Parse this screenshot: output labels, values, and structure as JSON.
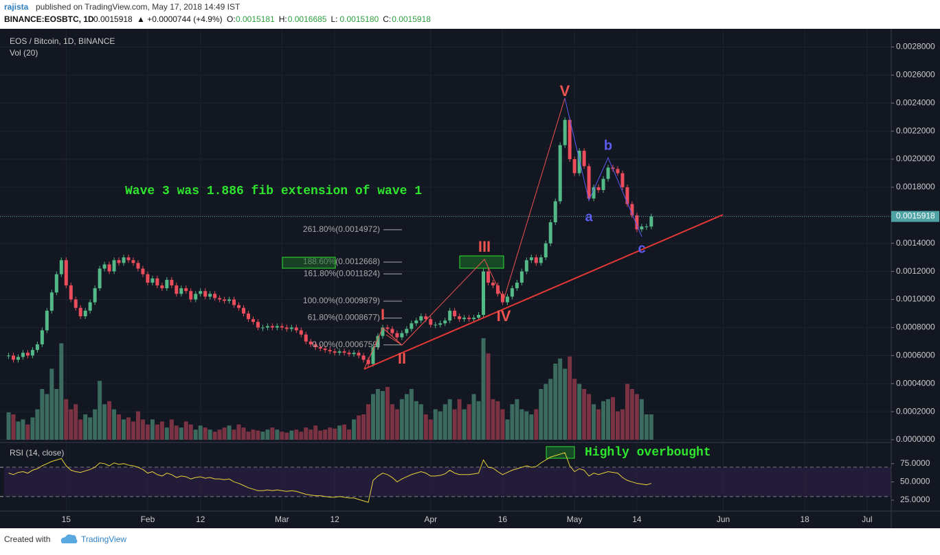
{
  "header": {
    "author": "rajista",
    "published": "published on TradingView.com, May 17, 2018 14:49 IST",
    "symbol": "BINANCE:EOSBTC, 1D",
    "last": "0.0015918",
    "change": "▲ +0.0000744 (+4.9%)",
    "ohlc": [
      {
        "label": "O:",
        "value": "0.0015181"
      },
      {
        "label": "H:",
        "value": "0.0016685"
      },
      {
        "label": "L:",
        "value": "0.0015180"
      },
      {
        "label": "C:",
        "value": "0.0015918"
      }
    ]
  },
  "footer": {
    "created": "Created with",
    "brand": "TradingView"
  },
  "chart_data": {
    "type": "candlestick",
    "title": "EOS / Bitcoin, 1D, BINANCE",
    "up_color": "#53b987",
    "down_color": "#eb4d5c",
    "grid": true,
    "categories": [
      null,
      null,
      null,
      null,
      null,
      null,
      null,
      null,
      null,
      null,
      null,
      null,
      "15",
      null,
      null,
      null,
      null,
      null,
      null,
      null,
      null,
      null,
      null,
      null,
      null,
      null,
      null,
      null,
      null,
      "Feb",
      null,
      null,
      null,
      null,
      null,
      null,
      null,
      null,
      null,
      null,
      "12",
      null,
      null,
      null,
      null,
      null,
      null,
      null,
      null,
      null,
      null,
      null,
      null,
      null,
      null,
      null,
      null,
      "Mar",
      null,
      null,
      null,
      null,
      null,
      null,
      null,
      null,
      null,
      null,
      "12",
      null,
      null,
      null,
      null,
      null,
      null,
      null,
      null,
      null,
      null,
      null,
      null,
      null,
      null,
      null,
      null,
      null,
      null,
      null,
      "Apr",
      null,
      null,
      null,
      null,
      null,
      null,
      null,
      null,
      null,
      null,
      null,
      null,
      null,
      null,
      "16",
      null,
      null,
      null,
      null,
      null,
      null,
      null,
      null,
      null,
      null,
      null,
      null,
      null,
      null,
      "May",
      null,
      null,
      null,
      null,
      null,
      null,
      null,
      null,
      null,
      null,
      null,
      null,
      "14",
      null,
      null,
      null,
      null,
      null,
      null,
      null,
      null,
      null,
      null,
      null,
      null,
      null,
      null,
      null,
      null,
      null,
      "Jun",
      null,
      null,
      null,
      null,
      null,
      null,
      null,
      null,
      null,
      null,
      null,
      null,
      null,
      null,
      null,
      null,
      "18",
      null,
      null,
      null,
      null,
      null,
      null,
      null,
      null,
      null,
      null,
      null,
      null,
      "Jul"
    ],
    "close": [
      0.0006,
      0.00057,
      0.00059,
      0.00062,
      0.0006,
      0.00064,
      0.00068,
      0.00078,
      0.00092,
      0.00105,
      0.00118,
      0.00128,
      0.0011,
      0.001,
      0.00094,
      0.00088,
      0.00092,
      0.00098,
      0.00108,
      0.00122,
      0.00125,
      0.0012,
      0.00128,
      0.00126,
      0.0013,
      0.00128,
      0.00126,
      0.00122,
      0.00118,
      0.00112,
      0.00115,
      0.0011,
      0.00108,
      0.00114,
      0.0011,
      0.00104,
      0.00108,
      0.00106,
      0.001,
      0.00104,
      0.00106,
      0.00102,
      0.00104,
      0.00101,
      0.001,
      0.00099,
      0.001,
      0.00096,
      0.00094,
      0.0009,
      0.00086,
      0.00084,
      0.0008,
      0.0008,
      0.00081,
      0.0008,
      0.00081,
      0.0008,
      0.00079,
      0.0008,
      0.00078,
      0.00075,
      0.0007,
      0.00068,
      0.00066,
      0.00065,
      0.00064,
      0.00063,
      0.00062,
      0.00063,
      0.00062,
      0.00061,
      0.00062,
      0.0006,
      0.00057,
      0.00054,
      0.00066,
      0.00074,
      0.0008,
      0.00079,
      0.00076,
      0.00073,
      0.00076,
      0.00079,
      0.00083,
      0.00085,
      0.00088,
      0.00086,
      0.00082,
      0.00082,
      0.00083,
      0.00085,
      0.00092,
      0.00088,
      0.00086,
      0.00087,
      0.00086,
      0.00087,
      0.00089,
      0.0012,
      0.00112,
      0.0011,
      0.00104,
      0.00098,
      0.00102,
      0.00108,
      0.00112,
      0.0012,
      0.00128,
      0.0013,
      0.00126,
      0.0013,
      0.0014,
      0.00155,
      0.0017,
      0.0021,
      0.00228,
      0.002,
      0.0019,
      0.00206,
      0.00195,
      0.00172,
      0.0018,
      0.00178,
      0.00186,
      0.00194,
      0.00193,
      0.0019,
      0.0018,
      0.00168,
      0.0016,
      0.0015,
      0.00152,
      0.00152,
      0.0015918,
      null,
      null,
      null,
      null,
      null,
      null,
      null,
      null,
      null,
      null,
      null,
      null,
      null,
      null,
      null,
      null,
      null,
      null,
      null,
      null,
      null,
      null,
      null,
      null,
      null,
      null,
      null,
      null,
      null,
      null,
      null,
      null,
      null,
      null,
      null,
      null,
      null,
      null,
      null,
      null,
      null,
      null,
      null,
      null,
      null
    ],
    "ylim": [
      0,
      0.0029
    ],
    "yticks": [
      {
        "value": 0,
        "label": "0.0000000"
      },
      {
        "value": 0.0002,
        "label": "0.0002000"
      },
      {
        "value": 0.0004,
        "label": "0.0004000"
      },
      {
        "value": 0.0006,
        "label": "0.0006000"
      },
      {
        "value": 0.0008,
        "label": "0.0008000"
      },
      {
        "value": 0.001,
        "label": "0.0010000"
      },
      {
        "value": 0.0012,
        "label": "0.0012000"
      },
      {
        "value": 0.0014,
        "label": "0.0014000"
      },
      {
        "value": 0.0016,
        "label": "0.0016000"
      },
      {
        "value": 0.0018,
        "label": "0.0018000"
      },
      {
        "value": 0.002,
        "label": "0.0020000"
      },
      {
        "value": 0.0022,
        "label": "0.0022000"
      },
      {
        "value": 0.0024,
        "label": "0.0024000"
      },
      {
        "value": 0.0026,
        "label": "0.0026000"
      },
      {
        "value": 0.0028,
        "label": "0.0028000"
      }
    ],
    "last_price": 0.0015918,
    "volume": {
      "label": "Vol (20)",
      "ylim": [
        0,
        100
      ],
      "up_color": "#3b6b5e",
      "down_color": "#7b3344",
      "values": [
        27,
        25,
        18,
        20,
        15,
        22,
        30,
        50,
        45,
        70,
        50,
        95,
        40,
        30,
        35,
        20,
        25,
        22,
        30,
        58,
        35,
        38,
        30,
        25,
        20,
        22,
        18,
        28,
        20,
        15,
        20,
        15,
        18,
        12,
        20,
        14,
        12,
        18,
        15,
        10,
        14,
        12,
        10,
        8,
        10,
        12,
        14,
        10,
        15,
        12,
        8,
        10,
        9,
        8,
        10,
        12,
        10,
        8,
        7,
        9,
        10,
        8,
        12,
        10,
        14,
        9,
        10,
        12,
        11,
        14,
        15,
        10,
        20,
        24,
        25,
        35,
        45,
        50,
        48,
        52,
        35,
        30,
        40,
        45,
        50,
        38,
        35,
        25,
        20,
        30,
        28,
        35,
        40,
        30,
        40,
        30,
        35,
        45,
        38,
        100,
        85,
        40,
        38,
        30,
        20,
        35,
        40,
        30,
        28,
        25,
        30,
        50,
        55,
        60,
        75,
        80,
        70,
        82,
        60,
        55,
        50,
        45,
        35,
        30,
        38,
        40,
        42,
        28,
        30,
        55,
        50,
        45,
        40,
        25,
        25,
        null,
        null,
        null,
        null,
        null,
        null,
        null,
        null,
        null,
        null,
        null,
        null,
        null,
        null,
        null,
        null,
        null,
        null,
        null,
        null,
        null,
        null,
        null,
        null,
        null,
        null,
        null,
        null,
        null,
        null,
        null,
        null,
        null,
        null,
        null,
        null,
        null,
        null,
        null,
        null,
        null,
        null,
        null,
        null,
        null
      ]
    },
    "rsi": {
      "label": "RSI (14, close)",
      "color": "#e8d33a",
      "ylim": [
        10,
        103
      ],
      "bands": [
        70,
        30
      ],
      "yticks": [
        {
          "value": 75,
          "label": "75.0000"
        },
        {
          "value": 50,
          "label": "50.0000"
        },
        {
          "value": 25,
          "label": "25.0000"
        }
      ],
      "values": [
        62,
        60,
        63,
        64,
        62,
        66,
        68,
        72,
        75,
        78,
        80,
        82,
        72,
        66,
        64,
        63,
        65,
        67,
        70,
        76,
        75,
        72,
        76,
        74,
        75,
        73,
        72,
        70,
        67,
        62,
        64,
        60,
        58,
        62,
        60,
        56,
        58,
        57,
        54,
        56,
        57,
        55,
        56,
        54,
        54,
        53,
        54,
        50,
        48,
        45,
        42,
        40,
        38,
        38,
        39,
        38,
        39,
        38,
        37,
        38,
        37,
        35,
        33,
        32,
        31,
        31,
        30,
        29,
        29,
        30,
        29,
        28,
        28,
        26,
        24,
        22,
        52,
        58,
        62,
        60,
        56,
        50,
        54,
        57,
        60,
        62,
        64,
        62,
        58,
        58,
        59,
        61,
        66,
        62,
        60,
        60,
        60,
        61,
        62,
        80,
        70,
        69,
        64,
        60,
        63,
        66,
        68,
        70,
        72,
        70,
        71,
        76,
        80,
        84,
        86,
        88,
        90,
        72,
        64,
        68,
        66,
        58,
        62,
        60,
        62,
        64,
        63,
        62,
        56,
        52,
        50,
        48,
        47,
        46,
        48,
        null,
        null,
        null,
        null,
        null,
        null,
        null,
        null,
        null,
        null,
        null,
        null,
        null,
        null,
        null,
        null,
        null,
        null,
        null,
        null,
        null,
        null,
        null,
        null,
        null,
        null,
        null,
        null,
        null,
        null,
        null,
        null,
        null,
        null,
        null,
        null,
        null,
        null,
        null,
        null,
        null,
        null,
        null,
        null,
        null
      ]
    },
    "fib_levels": [
      {
        "label": "261.80%(0.0014972)",
        "value": 0.0014972
      },
      {
        "label": "188.60%(0.0012668)",
        "value": 0.0012668
      },
      {
        "label": "161.80%(0.0011824)",
        "value": 0.0011824
      },
      {
        "label": "100.00%(0.0009879)",
        "value": 0.0009879
      },
      {
        "label": "61.80%(0.0008677)",
        "value": 0.0008677
      },
      {
        "label": "0.00%(0.0006759)",
        "value": 0.0006759
      }
    ],
    "annotations": {
      "wave3": "Wave 3 was 1.886 fib extension of wave 1",
      "overbought": "Highly overbought",
      "waves": [
        "I",
        "II",
        "III",
        "IV",
        "V",
        "a",
        "b",
        "c"
      ]
    }
  }
}
